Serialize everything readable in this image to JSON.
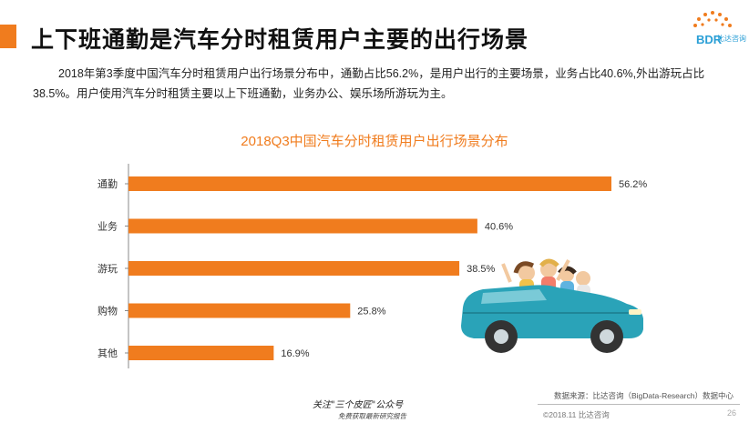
{
  "header": {
    "title": "上下班通勤是汽车分时租赁用户主要的出行场景",
    "logo_text": "BDR",
    "logo_sub": "比达咨询",
    "accent_color": "#f07c1e",
    "logo_color": "#2a9fd6"
  },
  "description": "2018年第3季度中国汽车分时租赁用户出行场景分布中，通勤占比56.2%，是用户出行的主要场景，业务占比40.6%,外出游玩占比38.5%。用户使用汽车分时租赁主要以上下班通勤，业务办公、娱乐场所游玩为主。",
  "chart_data": {
    "type": "bar",
    "orientation": "horizontal",
    "title": "2018Q3中国汽车分时租赁用户出行场景分布",
    "categories": [
      "通勤",
      "业务",
      "游玩",
      "购物",
      "其他"
    ],
    "values": [
      56.2,
      40.6,
      38.5,
      25.8,
      16.9
    ],
    "value_labels": [
      "56.2%",
      "40.6%",
      "38.5%",
      "25.8%",
      "16.9%"
    ],
    "unit": "%",
    "bar_color": "#f07c1e",
    "grid": false,
    "legend": "none"
  },
  "illustration": {
    "name": "car-with-passengers-illustration",
    "car_color": "#2aa3b8"
  },
  "footer": {
    "source": "数据来源：比达咨询（BigData-Research）数据中心",
    "copyright": "©2018.11 比达咨询",
    "page": "26",
    "watermark_line1": "关注\"三个皮匠\"公众号",
    "watermark_line2": "免费获取最新研究报告"
  }
}
